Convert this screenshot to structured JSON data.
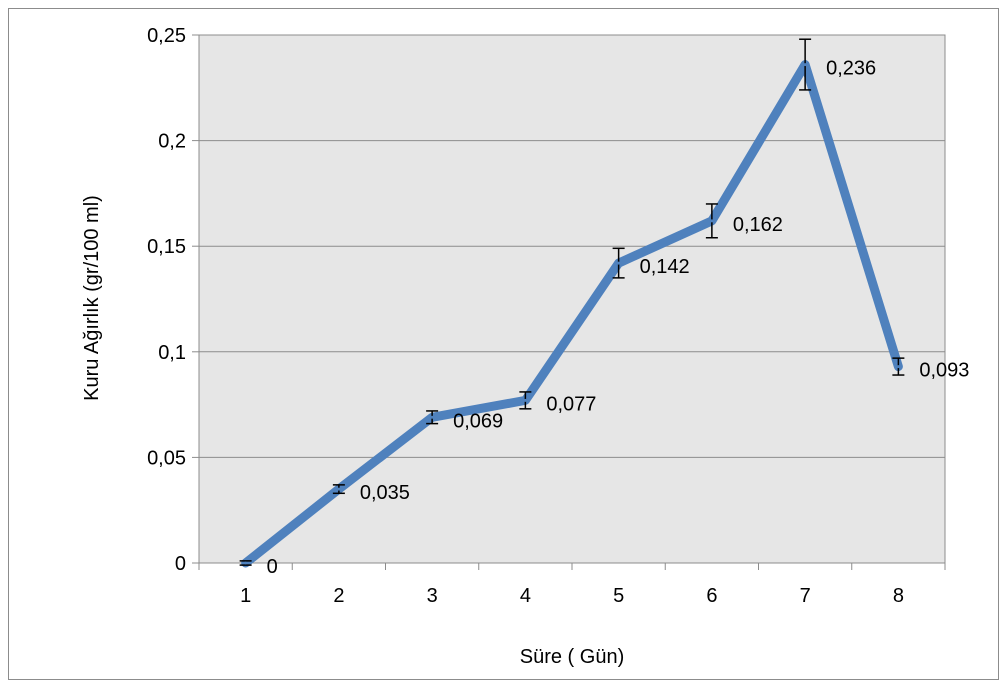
{
  "chart_data": {
    "type": "line",
    "title": "",
    "xlabel": "Süre ( Gün)",
    "ylabel": "Kuru Ağırlık (gr/100 ml)",
    "categories": [
      "1",
      "2",
      "3",
      "4",
      "5",
      "6",
      "7",
      "8"
    ],
    "series": [
      {
        "values": [
          0,
          0.035,
          0.069,
          0.077,
          0.142,
          0.162,
          0.236,
          0.093
        ],
        "error": [
          0.001,
          0.002,
          0.003,
          0.004,
          0.007,
          0.008,
          0.012,
          0.004
        ],
        "color": "#4f81bd",
        "data_labels": [
          "0",
          "0,035",
          "0,069",
          "0,077",
          "0,142",
          "0,162",
          "0,236",
          "0,093"
        ]
      }
    ],
    "ylim": [
      0,
      0.25
    ],
    "yticks": [
      0,
      0.05,
      0.1,
      0.15,
      0.2,
      0.25
    ],
    "ytick_labels": [
      "0",
      "0,05",
      "0,1",
      "0,15",
      "0,2",
      "0,25"
    ],
    "grid": "horizontal",
    "legend": "none",
    "plot_background": "#e6e6e6",
    "error_bars": true
  }
}
